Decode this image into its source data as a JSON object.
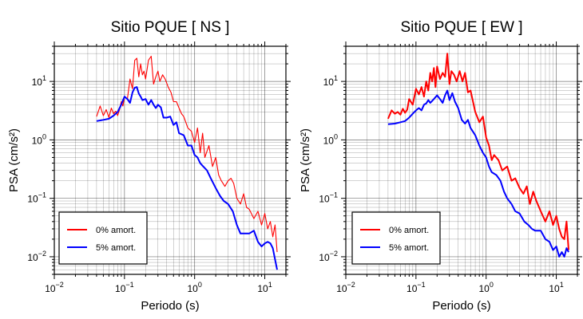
{
  "chart_data": [
    {
      "type": "line",
      "title": "Sitio PQUE [ NS ]",
      "xlabel": "Periodo (s)",
      "ylabel": "PSA (cm/s²)",
      "xscale": "log",
      "yscale": "log",
      "xlim": [
        0.01,
        20
      ],
      "ylim": [
        0.005,
        40
      ],
      "grid": true,
      "legend_position": "bottom-left",
      "x_ticks": [
        {
          "value": 0.01,
          "base": "10",
          "exp": "−2"
        },
        {
          "value": 0.1,
          "base": "10",
          "exp": "−1"
        },
        {
          "value": 1,
          "base": "10",
          "exp": "0"
        },
        {
          "value": 10,
          "base": "10",
          "exp": "1"
        }
      ],
      "y_ticks": [
        {
          "value": 0.01,
          "base": "10",
          "exp": "−2"
        },
        {
          "value": 0.1,
          "base": "10",
          "exp": "−1"
        },
        {
          "value": 1,
          "base": "10",
          "exp": "0"
        },
        {
          "value": 10,
          "base": "10",
          "exp": "1"
        }
      ],
      "series": [
        {
          "name": "0% amort.",
          "color": "#ff0000",
          "width": 1.1,
          "x": [
            0.04,
            0.045,
            0.05,
            0.055,
            0.06,
            0.065,
            0.07,
            0.075,
            0.08,
            0.085,
            0.09,
            0.095,
            0.1,
            0.11,
            0.12,
            0.13,
            0.14,
            0.15,
            0.16,
            0.17,
            0.18,
            0.19,
            0.2,
            0.22,
            0.24,
            0.26,
            0.28,
            0.3,
            0.32,
            0.35,
            0.38,
            0.42,
            0.46,
            0.5,
            0.55,
            0.6,
            0.65,
            0.7,
            0.8,
            0.9,
            1.0,
            1.1,
            1.2,
            1.3,
            1.4,
            1.6,
            1.8,
            2.0,
            2.2,
            2.4,
            2.7,
            3.0,
            3.3,
            3.6,
            4.0,
            4.5,
            5.0,
            5.5,
            6.0,
            7.0,
            8.0,
            9.0,
            10,
            11,
            12,
            13,
            14,
            15
          ],
          "y": [
            2.5,
            3.8,
            2.6,
            3.3,
            2.4,
            3.5,
            2.8,
            3.1,
            2.6,
            3.3,
            4.5,
            3.8,
            5.5,
            5.0,
            11.0,
            7.5,
            23.0,
            25.0,
            12.0,
            20.0,
            13.0,
            15.0,
            11.0,
            23.0,
            27.0,
            9.0,
            12.0,
            15.0,
            10.0,
            13.0,
            11.0,
            8.0,
            6.5,
            4.5,
            4.5,
            3.5,
            2.8,
            2.5,
            1.6,
            1.4,
            0.9,
            1.6,
            0.6,
            1.3,
            0.5,
            0.8,
            0.35,
            0.5,
            0.25,
            0.2,
            0.16,
            0.2,
            0.22,
            0.18,
            0.1,
            0.08,
            0.12,
            0.07,
            0.065,
            0.045,
            0.06,
            0.035,
            0.055,
            0.03,
            0.04,
            0.022,
            0.035,
            0.012
          ]
        },
        {
          "name": "5% amort.",
          "color": "#0000ff",
          "width": 2.0,
          "x": [
            0.04,
            0.05,
            0.06,
            0.07,
            0.08,
            0.09,
            0.1,
            0.11,
            0.12,
            0.13,
            0.14,
            0.15,
            0.16,
            0.17,
            0.18,
            0.2,
            0.22,
            0.24,
            0.26,
            0.28,
            0.3,
            0.33,
            0.36,
            0.4,
            0.45,
            0.5,
            0.55,
            0.6,
            0.7,
            0.8,
            0.9,
            1.0,
            1.1,
            1.2,
            1.3,
            1.5,
            1.7,
            2.0,
            2.3,
            2.6,
            3.0,
            3.5,
            4.0,
            4.5,
            5.0,
            6.0,
            7.0,
            8.0,
            9.0,
            10,
            11,
            12,
            13,
            14,
            15
          ],
          "y": [
            2.1,
            2.2,
            2.3,
            2.6,
            3.0,
            4.0,
            5.5,
            5.0,
            4.3,
            6.5,
            7.8,
            8.0,
            6.2,
            5.5,
            4.8,
            5.0,
            4.0,
            4.8,
            4.0,
            3.5,
            4.0,
            3.6,
            2.4,
            2.4,
            2.5,
            1.8,
            2.0,
            1.3,
            1.2,
            0.8,
            0.8,
            0.55,
            0.5,
            0.4,
            0.36,
            0.3,
            0.22,
            0.15,
            0.11,
            0.09,
            0.08,
            0.06,
            0.035,
            0.025,
            0.025,
            0.025,
            0.028,
            0.018,
            0.015,
            0.017,
            0.018,
            0.017,
            0.014,
            0.009,
            0.006
          ]
        }
      ]
    },
    {
      "type": "line",
      "title": "Sitio PQUE [ EW ]",
      "xlabel": "Periodo (s)",
      "ylabel": "PSA (cm/s²)",
      "xscale": "log",
      "yscale": "log",
      "xlim": [
        0.01,
        20
      ],
      "ylim": [
        0.005,
        40
      ],
      "grid": true,
      "legend_position": "bottom-left",
      "x_ticks": [
        {
          "value": 0.01,
          "base": "10",
          "exp": "−2"
        },
        {
          "value": 0.1,
          "base": "10",
          "exp": "−1"
        },
        {
          "value": 1,
          "base": "10",
          "exp": "0"
        },
        {
          "value": 10,
          "base": "10",
          "exp": "1"
        }
      ],
      "y_ticks": [
        {
          "value": 0.01,
          "base": "10",
          "exp": "−2"
        },
        {
          "value": 0.1,
          "base": "10",
          "exp": "−1"
        },
        {
          "value": 1,
          "base": "10",
          "exp": "0"
        },
        {
          "value": 10,
          "base": "10",
          "exp": "1"
        }
      ],
      "series": [
        {
          "name": "0% amort.",
          "color": "#ff0000",
          "width": 2.0,
          "x": [
            0.04,
            0.045,
            0.05,
            0.055,
            0.06,
            0.065,
            0.07,
            0.075,
            0.08,
            0.09,
            0.1,
            0.11,
            0.12,
            0.13,
            0.14,
            0.15,
            0.16,
            0.17,
            0.18,
            0.19,
            0.2,
            0.22,
            0.24,
            0.26,
            0.28,
            0.3,
            0.32,
            0.35,
            0.38,
            0.42,
            0.46,
            0.5,
            0.55,
            0.6,
            0.7,
            0.8,
            0.9,
            1.0,
            1.1,
            1.2,
            1.3,
            1.5,
            1.7,
            2.0,
            2.3,
            2.6,
            3.0,
            3.4,
            3.8,
            4.2,
            4.7,
            5.2,
            6.0,
            7.0,
            8.0,
            9.0,
            10,
            11,
            12,
            13,
            14,
            15
          ],
          "y": [
            2.3,
            3.2,
            2.8,
            3.0,
            2.7,
            3.4,
            2.9,
            3.3,
            5.0,
            4.0,
            7.5,
            6.0,
            8.0,
            5.5,
            10.0,
            7.0,
            14.0,
            10.0,
            17.0,
            8.0,
            18.0,
            11.0,
            14.0,
            12.0,
            30.0,
            9.0,
            15.0,
            13.0,
            10.0,
            15.0,
            10.0,
            14.0,
            6.5,
            7.0,
            3.0,
            2.0,
            2.5,
            1.1,
            0.8,
            0.45,
            0.55,
            0.45,
            0.3,
            0.35,
            0.2,
            0.22,
            0.15,
            0.12,
            0.16,
            0.08,
            0.13,
            0.09,
            0.06,
            0.04,
            0.06,
            0.035,
            0.05,
            0.03,
            0.022,
            0.02,
            0.04,
            0.013
          ]
        },
        {
          "name": "5% amort.",
          "color": "#0000ff",
          "width": 2.0,
          "x": [
            0.04,
            0.05,
            0.06,
            0.07,
            0.08,
            0.09,
            0.1,
            0.11,
            0.12,
            0.13,
            0.14,
            0.15,
            0.16,
            0.18,
            0.2,
            0.22,
            0.24,
            0.26,
            0.28,
            0.3,
            0.33,
            0.36,
            0.4,
            0.45,
            0.5,
            0.55,
            0.6,
            0.7,
            0.8,
            0.9,
            1.0,
            1.1,
            1.2,
            1.4,
            1.6,
            1.8,
            2.0,
            2.3,
            2.6,
            3.0,
            3.5,
            4.0,
            4.5,
            5.0,
            6.0,
            7.0,
            8.0,
            9.0,
            10,
            11,
            12,
            13,
            14,
            15
          ],
          "y": [
            1.85,
            1.9,
            2.0,
            2.1,
            2.4,
            2.8,
            3.2,
            3.5,
            3.2,
            4.0,
            4.2,
            4.8,
            4.3,
            5.0,
            5.8,
            5.0,
            4.3,
            5.8,
            7.0,
            4.8,
            6.3,
            4.5,
            3.5,
            2.2,
            1.9,
            2.2,
            1.6,
            1.2,
            0.8,
            0.6,
            0.5,
            0.35,
            0.28,
            0.25,
            0.2,
            0.13,
            0.1,
            0.08,
            0.06,
            0.055,
            0.04,
            0.035,
            0.03,
            0.028,
            0.028,
            0.02,
            0.018,
            0.013,
            0.015,
            0.01,
            0.012,
            0.01,
            0.014,
            0.012
          ]
        }
      ]
    }
  ]
}
